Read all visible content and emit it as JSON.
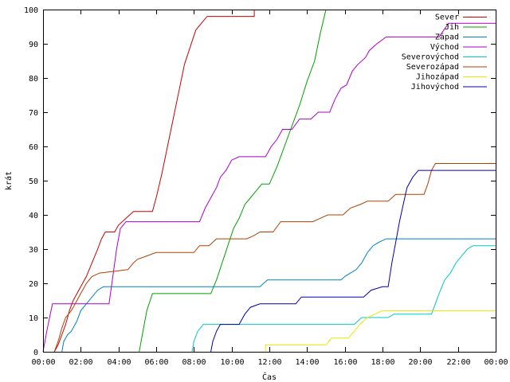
{
  "chart_data": {
    "type": "line",
    "xlabel": "Čas",
    "ylabel": "krát",
    "xlim": [
      0,
      24
    ],
    "ylim": [
      0,
      100
    ],
    "x_ticks": [
      {
        "value": 0,
        "label": "00:00"
      },
      {
        "value": 2,
        "label": "02:00"
      },
      {
        "value": 4,
        "label": "04:00"
      },
      {
        "value": 6,
        "label": "06:00"
      },
      {
        "value": 8,
        "label": "08:00"
      },
      {
        "value": 10,
        "label": "10:00"
      },
      {
        "value": 12,
        "label": "12:00"
      },
      {
        "value": 14,
        "label": "14:00"
      },
      {
        "value": 16,
        "label": "16:00"
      },
      {
        "value": 18,
        "label": "18:00"
      },
      {
        "value": 20,
        "label": "20:00"
      },
      {
        "value": 22,
        "label": "22:00"
      },
      {
        "value": 24,
        "label": "00:00"
      }
    ],
    "y_ticks": [
      0,
      10,
      20,
      30,
      40,
      50,
      60,
      70,
      80,
      90,
      100
    ],
    "grid": false,
    "legend_position": "top-right",
    "series": [
      {
        "name": "Sever",
        "color": "#cc0000",
        "points": [
          [
            0.6,
            0
          ],
          [
            0.8,
            2
          ],
          [
            1.0,
            5
          ],
          [
            1.2,
            8
          ],
          [
            1.4,
            12
          ],
          [
            1.6,
            15
          ],
          [
            1.8,
            17
          ],
          [
            2.0,
            19
          ],
          [
            2.3,
            22
          ],
          [
            2.6,
            26
          ],
          [
            2.9,
            30
          ],
          [
            3.1,
            33
          ],
          [
            3.3,
            35
          ],
          [
            3.8,
            35
          ],
          [
            4.0,
            37
          ],
          [
            4.4,
            39
          ],
          [
            4.8,
            41
          ],
          [
            5.8,
            41
          ],
          [
            6.0,
            45
          ],
          [
            6.3,
            52
          ],
          [
            6.6,
            60
          ],
          [
            6.9,
            68
          ],
          [
            7.2,
            76
          ],
          [
            7.5,
            84
          ],
          [
            7.8,
            89
          ],
          [
            8.1,
            94
          ],
          [
            8.4,
            96
          ],
          [
            8.7,
            98
          ],
          [
            11.2,
            98
          ],
          [
            11.2,
            100
          ]
        ]
      },
      {
        "name": "Jih",
        "color": "#00a000",
        "points": [
          [
            5.1,
            0
          ],
          [
            5.3,
            6
          ],
          [
            5.5,
            12
          ],
          [
            5.8,
            17
          ],
          [
            8.9,
            17
          ],
          [
            9.2,
            21
          ],
          [
            9.5,
            26
          ],
          [
            9.8,
            31
          ],
          [
            10.1,
            36
          ],
          [
            10.4,
            39
          ],
          [
            10.7,
            43
          ],
          [
            11.0,
            45
          ],
          [
            11.3,
            47
          ],
          [
            11.6,
            49
          ],
          [
            12.0,
            49
          ],
          [
            12.4,
            54
          ],
          [
            12.8,
            60
          ],
          [
            13.2,
            66
          ],
          [
            13.6,
            72
          ],
          [
            14.0,
            79
          ],
          [
            14.4,
            85
          ],
          [
            14.7,
            93
          ],
          [
            15.0,
            100
          ]
        ]
      },
      {
        "name": "Západ",
        "color": "#0080c0",
        "points": [
          [
            1.0,
            0
          ],
          [
            1.1,
            3
          ],
          [
            1.3,
            5
          ],
          [
            1.5,
            6
          ],
          [
            1.8,
            9
          ],
          [
            2.0,
            12
          ],
          [
            2.3,
            14
          ],
          [
            2.6,
            16
          ],
          [
            2.9,
            18
          ],
          [
            3.2,
            19
          ],
          [
            11.5,
            19
          ],
          [
            11.7,
            20
          ],
          [
            11.9,
            21
          ],
          [
            15.8,
            21
          ],
          [
            16.0,
            22
          ],
          [
            16.3,
            23
          ],
          [
            16.6,
            24
          ],
          [
            16.9,
            26
          ],
          [
            17.2,
            29
          ],
          [
            17.5,
            31
          ],
          [
            17.8,
            32
          ],
          [
            18.2,
            33
          ],
          [
            24,
            33
          ]
        ]
      },
      {
        "name": "Východ",
        "color": "#aa00cc",
        "points": [
          [
            0,
            0
          ],
          [
            0.2,
            6
          ],
          [
            0.5,
            14
          ],
          [
            3.5,
            14
          ],
          [
            3.7,
            22
          ],
          [
            3.9,
            30
          ],
          [
            4.1,
            36
          ],
          [
            4.4,
            38
          ],
          [
            8.3,
            38
          ],
          [
            8.6,
            42
          ],
          [
            8.9,
            45
          ],
          [
            9.2,
            48
          ],
          [
            9.4,
            51
          ],
          [
            9.7,
            53
          ],
          [
            10.0,
            56
          ],
          [
            10.4,
            57
          ],
          [
            11.8,
            57
          ],
          [
            12.1,
            60
          ],
          [
            12.4,
            62
          ],
          [
            12.7,
            65
          ],
          [
            13.2,
            65
          ],
          [
            13.6,
            68
          ],
          [
            14.2,
            68
          ],
          [
            14.6,
            70
          ],
          [
            15.2,
            70
          ],
          [
            15.5,
            74
          ],
          [
            15.8,
            77
          ],
          [
            16.1,
            78
          ],
          [
            16.4,
            82
          ],
          [
            16.7,
            84
          ],
          [
            17.1,
            86
          ],
          [
            17.3,
            88
          ],
          [
            17.7,
            90
          ],
          [
            18.2,
            92
          ],
          [
            21.0,
            92
          ],
          [
            21.5,
            96
          ],
          [
            24,
            96
          ]
        ]
      },
      {
        "name": "Severovýchod",
        "color": "#00c8c8",
        "points": [
          [
            7.9,
            0
          ],
          [
            8.0,
            3
          ],
          [
            8.2,
            6
          ],
          [
            8.5,
            8
          ],
          [
            16.5,
            8
          ],
          [
            16.9,
            10
          ],
          [
            18.3,
            10
          ],
          [
            18.6,
            11
          ],
          [
            20.6,
            11
          ],
          [
            20.8,
            14
          ],
          [
            21.0,
            17
          ],
          [
            21.3,
            21
          ],
          [
            21.6,
            23
          ],
          [
            21.9,
            26
          ],
          [
            22.2,
            28
          ],
          [
            22.5,
            30
          ],
          [
            22.8,
            31
          ],
          [
            24,
            31
          ]
        ]
      },
      {
        "name": "Severozápad",
        "color": "#b04000",
        "points": [
          [
            0.6,
            0
          ],
          [
            0.8,
            3
          ],
          [
            1.0,
            7
          ],
          [
            1.2,
            10
          ],
          [
            1.5,
            12
          ],
          [
            1.8,
            15
          ],
          [
            2.0,
            17
          ],
          [
            2.3,
            20
          ],
          [
            2.6,
            22
          ],
          [
            3.0,
            23
          ],
          [
            4.5,
            24
          ],
          [
            4.8,
            26
          ],
          [
            5.0,
            27
          ],
          [
            5.5,
            28
          ],
          [
            6.0,
            29
          ],
          [
            8.0,
            29
          ],
          [
            8.3,
            31
          ],
          [
            8.8,
            31
          ],
          [
            9.2,
            33
          ],
          [
            10.8,
            33
          ],
          [
            11.2,
            34
          ],
          [
            11.5,
            35
          ],
          [
            12.2,
            35
          ],
          [
            12.6,
            38
          ],
          [
            14.3,
            38
          ],
          [
            14.7,
            39
          ],
          [
            15.1,
            40
          ],
          [
            15.9,
            40
          ],
          [
            16.3,
            42
          ],
          [
            16.8,
            43
          ],
          [
            17.2,
            44
          ],
          [
            18.3,
            44
          ],
          [
            18.7,
            46
          ],
          [
            20.2,
            46
          ],
          [
            20.4,
            49
          ],
          [
            20.6,
            53
          ],
          [
            20.8,
            55
          ],
          [
            24,
            55
          ]
        ]
      },
      {
        "name": "Jihozápad",
        "color": "#e8e800",
        "points": [
          [
            11.8,
            0
          ],
          [
            11.8,
            2
          ],
          [
            15.0,
            2
          ],
          [
            15.3,
            4
          ],
          [
            16.2,
            4
          ],
          [
            16.5,
            6
          ],
          [
            16.8,
            8
          ],
          [
            17.2,
            10
          ],
          [
            17.6,
            11
          ],
          [
            18.0,
            12
          ],
          [
            24,
            12
          ]
        ]
      },
      {
        "name": "Jihovýchod",
        "color": "#0000b0",
        "points": [
          [
            8.9,
            0
          ],
          [
            9.0,
            3
          ],
          [
            9.2,
            6
          ],
          [
            9.4,
            8
          ],
          [
            10.4,
            8
          ],
          [
            10.7,
            11
          ],
          [
            11.0,
            13
          ],
          [
            11.5,
            14
          ],
          [
            13.4,
            14
          ],
          [
            13.7,
            16
          ],
          [
            17.0,
            16
          ],
          [
            17.4,
            18
          ],
          [
            18.0,
            19
          ],
          [
            18.3,
            19
          ],
          [
            18.5,
            26
          ],
          [
            18.7,
            32
          ],
          [
            18.9,
            38
          ],
          [
            19.1,
            43
          ],
          [
            19.3,
            48
          ],
          [
            19.6,
            51
          ],
          [
            19.9,
            53
          ],
          [
            24,
            53
          ]
        ]
      }
    ]
  }
}
